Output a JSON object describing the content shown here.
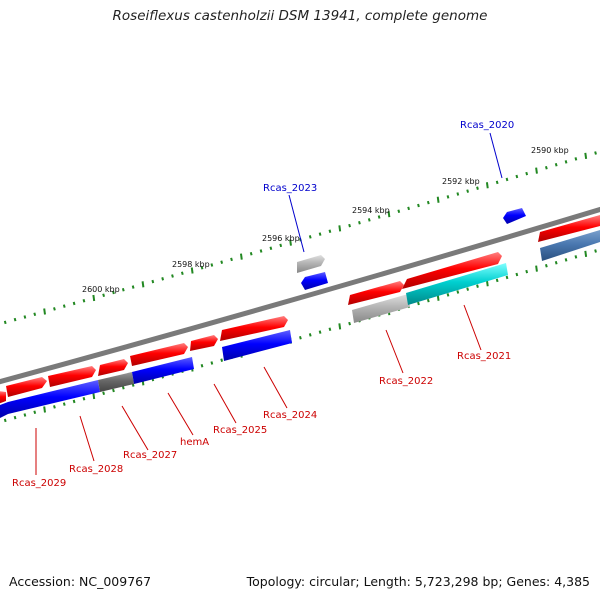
{
  "title": "Roseiflexus castenholzii DSM 13941, complete genome",
  "accession": "Accession: NC_009767",
  "summary": "Topology: circular; Length: 5,723,298 bp; Genes: 4,385",
  "scale_labels": [
    "2590 kbp",
    "2592 kbp",
    "2594 kbp",
    "2596 kbp",
    "2598 kbp",
    "2600 kbp"
  ],
  "genes": {
    "rcas_2020": "Rcas_2020",
    "rcas_2021": "Rcas_2021",
    "rcas_2022": "Rcas_2022",
    "rcas_2023": "Rcas_2023",
    "rcas_2024": "Rcas_2024",
    "rcas_2025": "Rcas_2025",
    "hemA": "hemA",
    "rcas_2027": "Rcas_2027",
    "rcas_2028": "Rcas_2028",
    "rcas_2029": "Rcas_2029"
  },
  "colors": {
    "forward_cds": "#ff0000",
    "reverse_cds": "#0000ff",
    "rna": "#00c8c8",
    "pseudo": "#b0b0b0",
    "backbone": "#777777",
    "ticks": "#228822"
  }
}
